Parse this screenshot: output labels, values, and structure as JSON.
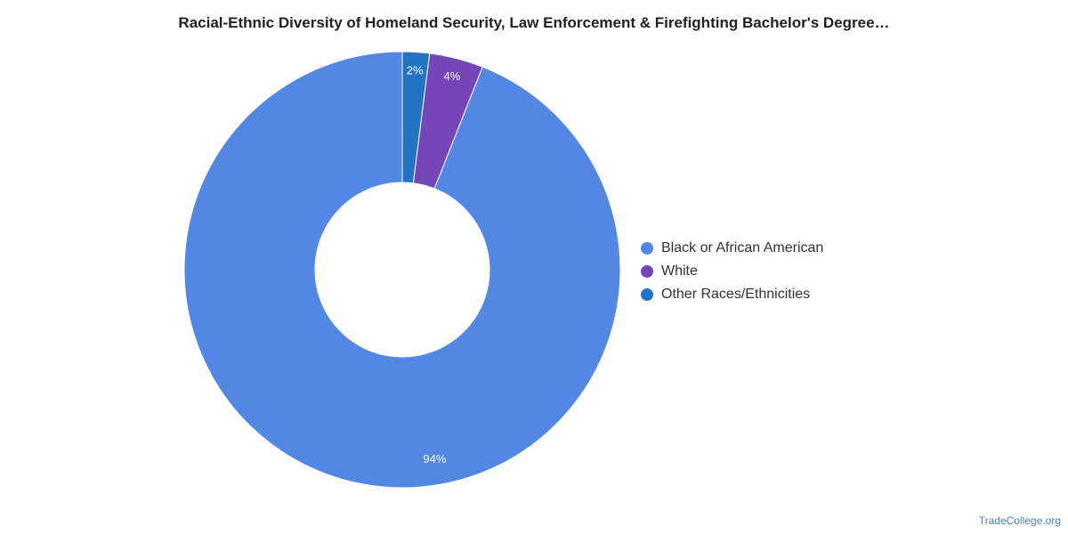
{
  "chart_data": {
    "type": "pie",
    "donut": true,
    "title": "Racial-Ethnic Diversity of Homeland Security, Law Enforcement & Firefighting Bachelor's Degree…",
    "slices": [
      {
        "label": "Black or African American",
        "value": 94,
        "display": "94%",
        "color": "#5387e4"
      },
      {
        "label": "White",
        "value": 4,
        "display": "4%",
        "color": "#7546b7"
      },
      {
        "label": "Other Races/Ethnicities",
        "value": 2,
        "display": "2%",
        "color": "#2474c4"
      }
    ],
    "legend_position": "right"
  },
  "footer": {
    "source": "TradeCollege.org"
  }
}
